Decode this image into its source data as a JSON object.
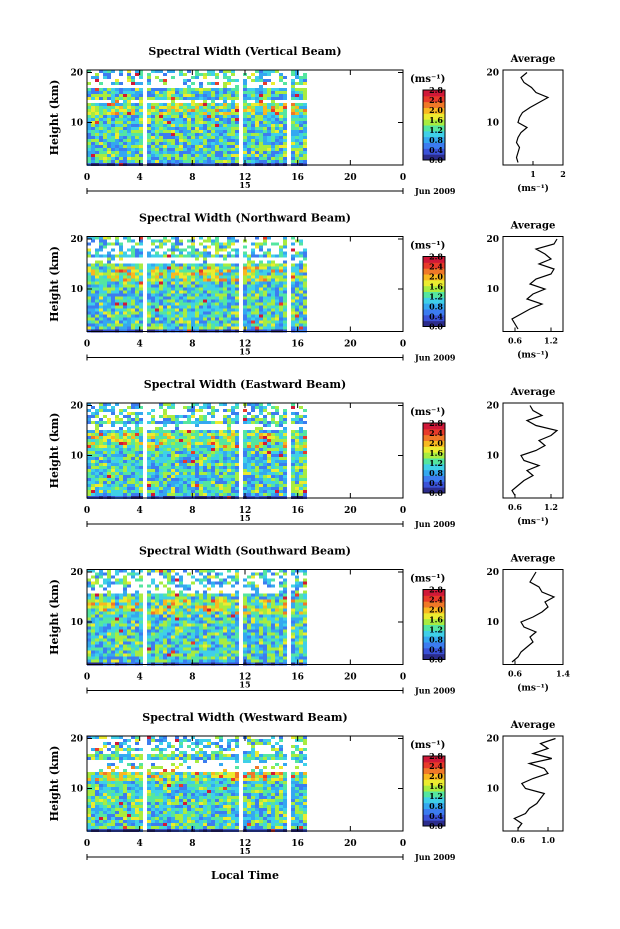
{
  "figure": {
    "xlabel": "Local Time",
    "date_label": "Jun 2009",
    "day_label": "15",
    "colorbar_unit": "(ms⁻¹)",
    "colorbar_ticks": [
      "0.0",
      "0.4",
      "0.8",
      "1.2",
      "1.6",
      "2.0",
      "2.4",
      "2.8"
    ],
    "avg_title": "Average",
    "avg_unit": "(ms⁻¹)",
    "height_label": "Height (km)",
    "time_ticks": [
      "0",
      "4",
      "8",
      "12",
      "16",
      "20",
      "0"
    ],
    "height_ticks": [
      "10",
      "20"
    ],
    "colors": {
      "colormap": [
        "#2c2c8c",
        "#3a52d8",
        "#3c7cf0",
        "#34a8f0",
        "#3fd0e8",
        "#54e6a0",
        "#a8ec40",
        "#ecec30",
        "#f8b820",
        "#f07828",
        "#e83a2a",
        "#d01838"
      ],
      "background": "#ffffff"
    }
  },
  "chart_data": [
    {
      "type": "heatmap",
      "title": "Spectral Width (Vertical Beam)",
      "xlabel": "",
      "ylabel": "Height (km)",
      "xlim": [
        0,
        24
      ],
      "ylim": [
        1.5,
        20.5
      ],
      "data_end_hour": 16.6,
      "gap_hours": [
        4.3,
        11.5,
        15.2
      ],
      "color_range": [
        0.0,
        2.8
      ],
      "gap_heights": [
        17.5,
        14.5
      ],
      "average_profile": {
        "xlabel": "(ms⁻¹)",
        "xlim": [
          0.0,
          2.0
        ],
        "xticks": [
          "1",
          "2"
        ],
        "height": [
          2,
          3,
          4,
          5,
          6,
          7,
          8,
          9,
          10,
          11,
          12,
          13,
          14,
          15,
          16,
          17,
          18,
          19,
          20
        ],
        "width": [
          0.5,
          0.45,
          0.5,
          0.55,
          0.45,
          0.5,
          0.6,
          0.8,
          0.5,
          0.55,
          0.65,
          0.9,
          1.2,
          1.5,
          1.1,
          0.95,
          0.7,
          0.6,
          0.8
        ]
      }
    },
    {
      "type": "heatmap",
      "title": "Spectral Width (Northward Beam)",
      "xlabel": "",
      "ylabel": "Height (km)",
      "xlim": [
        0,
        24
      ],
      "ylim": [
        1.5,
        20.5
      ],
      "data_end_hour": 16.6,
      "gap_hours": [
        4.3,
        11.5,
        15.2
      ],
      "color_range": [
        0.0,
        2.8
      ],
      "gap_heights": [
        16.0
      ],
      "average_profile": {
        "xlabel": "(ms⁻¹)",
        "xlim": [
          0.4,
          1.4
        ],
        "xticks": [
          "0.6",
          "1.2"
        ],
        "height": [
          2,
          3,
          4,
          5,
          6,
          7,
          8,
          9,
          10,
          11,
          12,
          13,
          14,
          15,
          16,
          17,
          18,
          19,
          20
        ],
        "width": [
          0.65,
          0.6,
          0.55,
          0.7,
          0.85,
          1.05,
          0.8,
          0.9,
          1.1,
          0.85,
          0.95,
          1.2,
          1.25,
          1.0,
          1.2,
          1.1,
          0.95,
          1.25,
          1.3
        ]
      }
    },
    {
      "type": "heatmap",
      "title": "Spectral Width (Eastward Beam)",
      "xlabel": "",
      "ylabel": "Height (km)",
      "xlim": [
        0,
        24
      ],
      "ylim": [
        1.5,
        20.5
      ],
      "data_end_hour": 16.6,
      "gap_hours": [
        4.3,
        11.5,
        15.2
      ],
      "color_range": [
        0.0,
        2.8
      ],
      "gap_heights": [
        16.0
      ],
      "average_profile": {
        "xlabel": "(ms⁻¹)",
        "xlim": [
          0.4,
          1.4
        ],
        "xticks": [
          "0.6",
          "1.2"
        ],
        "height": [
          2,
          3,
          4,
          5,
          6,
          7,
          8,
          9,
          10,
          11,
          12,
          13,
          14,
          15,
          16,
          17,
          18,
          19,
          20
        ],
        "width": [
          0.6,
          0.55,
          0.65,
          0.75,
          0.9,
          0.8,
          1.0,
          0.75,
          0.7,
          0.95,
          1.1,
          1.0,
          1.2,
          1.3,
          0.95,
          0.8,
          1.05,
          0.9,
          0.85
        ]
      }
    },
    {
      "type": "heatmap",
      "title": "Spectral Width (Southward Beam)",
      "xlabel": "",
      "ylabel": "Height (km)",
      "xlim": [
        0,
        24
      ],
      "ylim": [
        1.5,
        20.5
      ],
      "data_end_hour": 16.6,
      "gap_hours": [
        4.3,
        11.5,
        15.2
      ],
      "color_range": [
        0.0,
        2.8
      ],
      "gap_heights": [
        16.5
      ],
      "average_profile": {
        "xlabel": "(ms⁻¹)",
        "xlim": [
          0.4,
          1.4
        ],
        "xticks": [
          "0.6",
          "1.4"
        ],
        "height": [
          2,
          3,
          4,
          5,
          6,
          7,
          8,
          9,
          10,
          11,
          12,
          13,
          14,
          15,
          16,
          17,
          18,
          19,
          20
        ],
        "width": [
          0.55,
          0.65,
          0.7,
          0.8,
          0.9,
          0.85,
          0.95,
          0.75,
          0.7,
          0.9,
          1.05,
          1.15,
          1.1,
          1.25,
          1.05,
          1.0,
          0.85,
          0.9,
          0.95
        ]
      }
    },
    {
      "type": "heatmap",
      "title": "Spectral Width (Westward Beam)",
      "xlabel": "Local Time",
      "ylabel": "Height (km)",
      "xlim": [
        0,
        24
      ],
      "ylim": [
        1.5,
        20.5
      ],
      "data_end_hour": 16.6,
      "gap_hours": [
        4.3,
        11.5,
        15.2
      ],
      "color_range": [
        0.0,
        2.8
      ],
      "gap_heights": [
        15.5,
        14.0
      ],
      "average_profile": {
        "xlabel": "",
        "xlim": [
          0.4,
          1.2
        ],
        "xticks": [
          "0.6",
          "1.0"
        ],
        "height": [
          2,
          3,
          4,
          5,
          6,
          7,
          8,
          9,
          10,
          11,
          12,
          13,
          14,
          15,
          16,
          17,
          18,
          19,
          20
        ],
        "width": [
          0.6,
          0.65,
          0.55,
          0.7,
          0.75,
          0.85,
          0.9,
          0.95,
          0.7,
          0.65,
          0.8,
          1.0,
          0.95,
          0.75,
          1.05,
          0.8,
          1.0,
          0.9,
          1.1
        ]
      }
    }
  ]
}
